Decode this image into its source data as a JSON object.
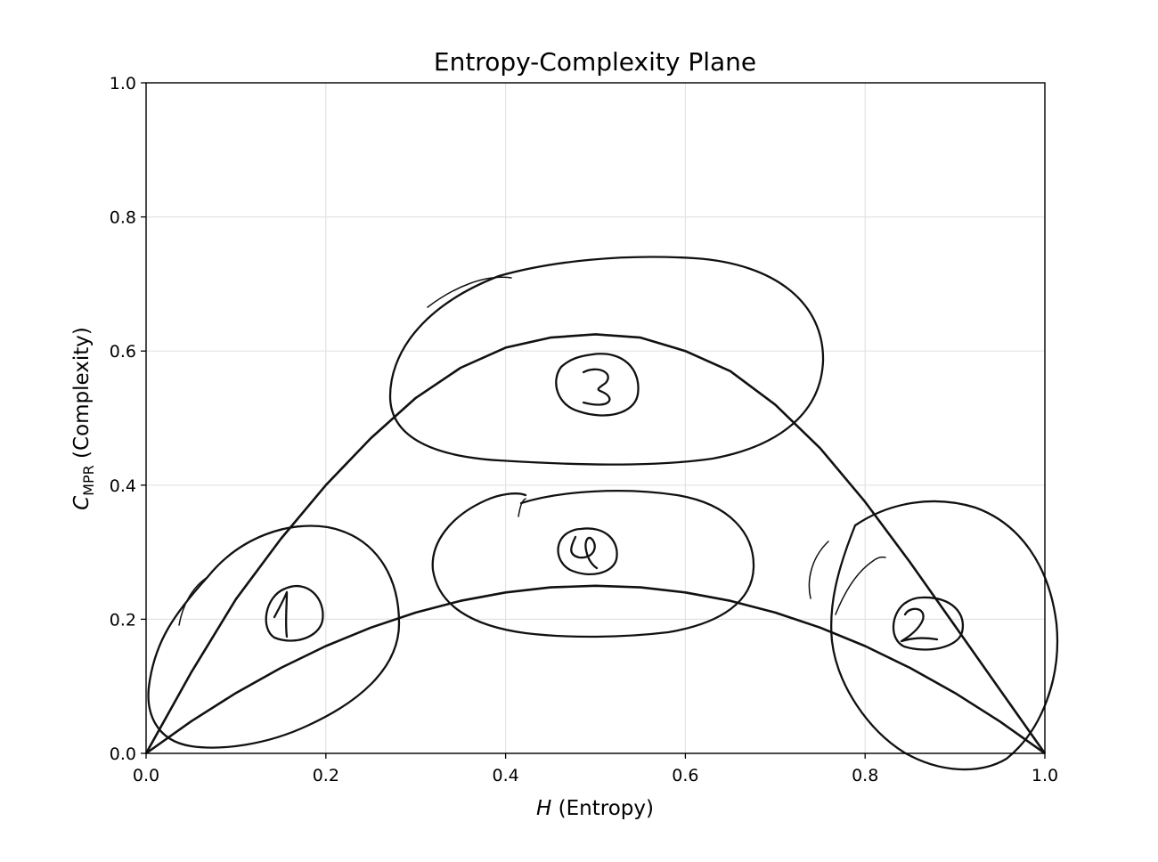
{
  "chart_data": {
    "type": "line",
    "title": "Entropy-Complexity Plane",
    "xlabel_italic": "H",
    "xlabel_rest": " (Entropy)",
    "ylabel_italic": "C",
    "ylabel_sub": "MPR",
    "ylabel_rest": " (Complexity)",
    "xlim": [
      0.0,
      1.0
    ],
    "ylim": [
      0.0,
      1.0
    ],
    "xticks": [
      "0.0",
      "0.2",
      "0.4",
      "0.6",
      "0.8",
      "1.0"
    ],
    "yticks": [
      "0.0",
      "0.2",
      "0.4",
      "0.6",
      "0.8",
      "1.0"
    ],
    "grid": true,
    "series": [
      {
        "role": "upper-bound",
        "color": "#111111",
        "x": [
          0.0,
          0.05,
          0.1,
          0.15,
          0.2,
          0.25,
          0.3,
          0.35,
          0.4,
          0.45,
          0.5,
          0.55,
          0.6,
          0.65,
          0.7,
          0.75,
          0.8,
          0.85,
          0.9,
          0.95,
          1.0
        ],
        "y": [
          0.0,
          0.12,
          0.23,
          0.32,
          0.4,
          0.47,
          0.53,
          0.575,
          0.605,
          0.62,
          0.625,
          0.62,
          0.6,
          0.57,
          0.52,
          0.455,
          0.375,
          0.285,
          0.19,
          0.095,
          0.0
        ]
      },
      {
        "role": "lower-bound",
        "color": "#111111",
        "x": [
          0.0,
          0.05,
          0.1,
          0.15,
          0.2,
          0.25,
          0.3,
          0.35,
          0.4,
          0.45,
          0.5,
          0.55,
          0.6,
          0.65,
          0.7,
          0.75,
          0.8,
          0.85,
          0.9,
          0.95,
          1.0
        ],
        "y": [
          0.0,
          0.0475,
          0.09,
          0.1275,
          0.16,
          0.1875,
          0.21,
          0.2275,
          0.24,
          0.2475,
          0.25,
          0.2475,
          0.24,
          0.2275,
          0.21,
          0.1875,
          0.16,
          0.1275,
          0.09,
          0.0475,
          0.0
        ]
      }
    ],
    "annotations": [
      {
        "label": "1",
        "x": 0.17,
        "y": 0.21
      },
      {
        "label": "2",
        "x": 0.9,
        "y": 0.19
      },
      {
        "label": "3",
        "x": 0.5,
        "y": 0.55
      },
      {
        "label": "4",
        "x": 0.49,
        "y": 0.3
      }
    ]
  }
}
